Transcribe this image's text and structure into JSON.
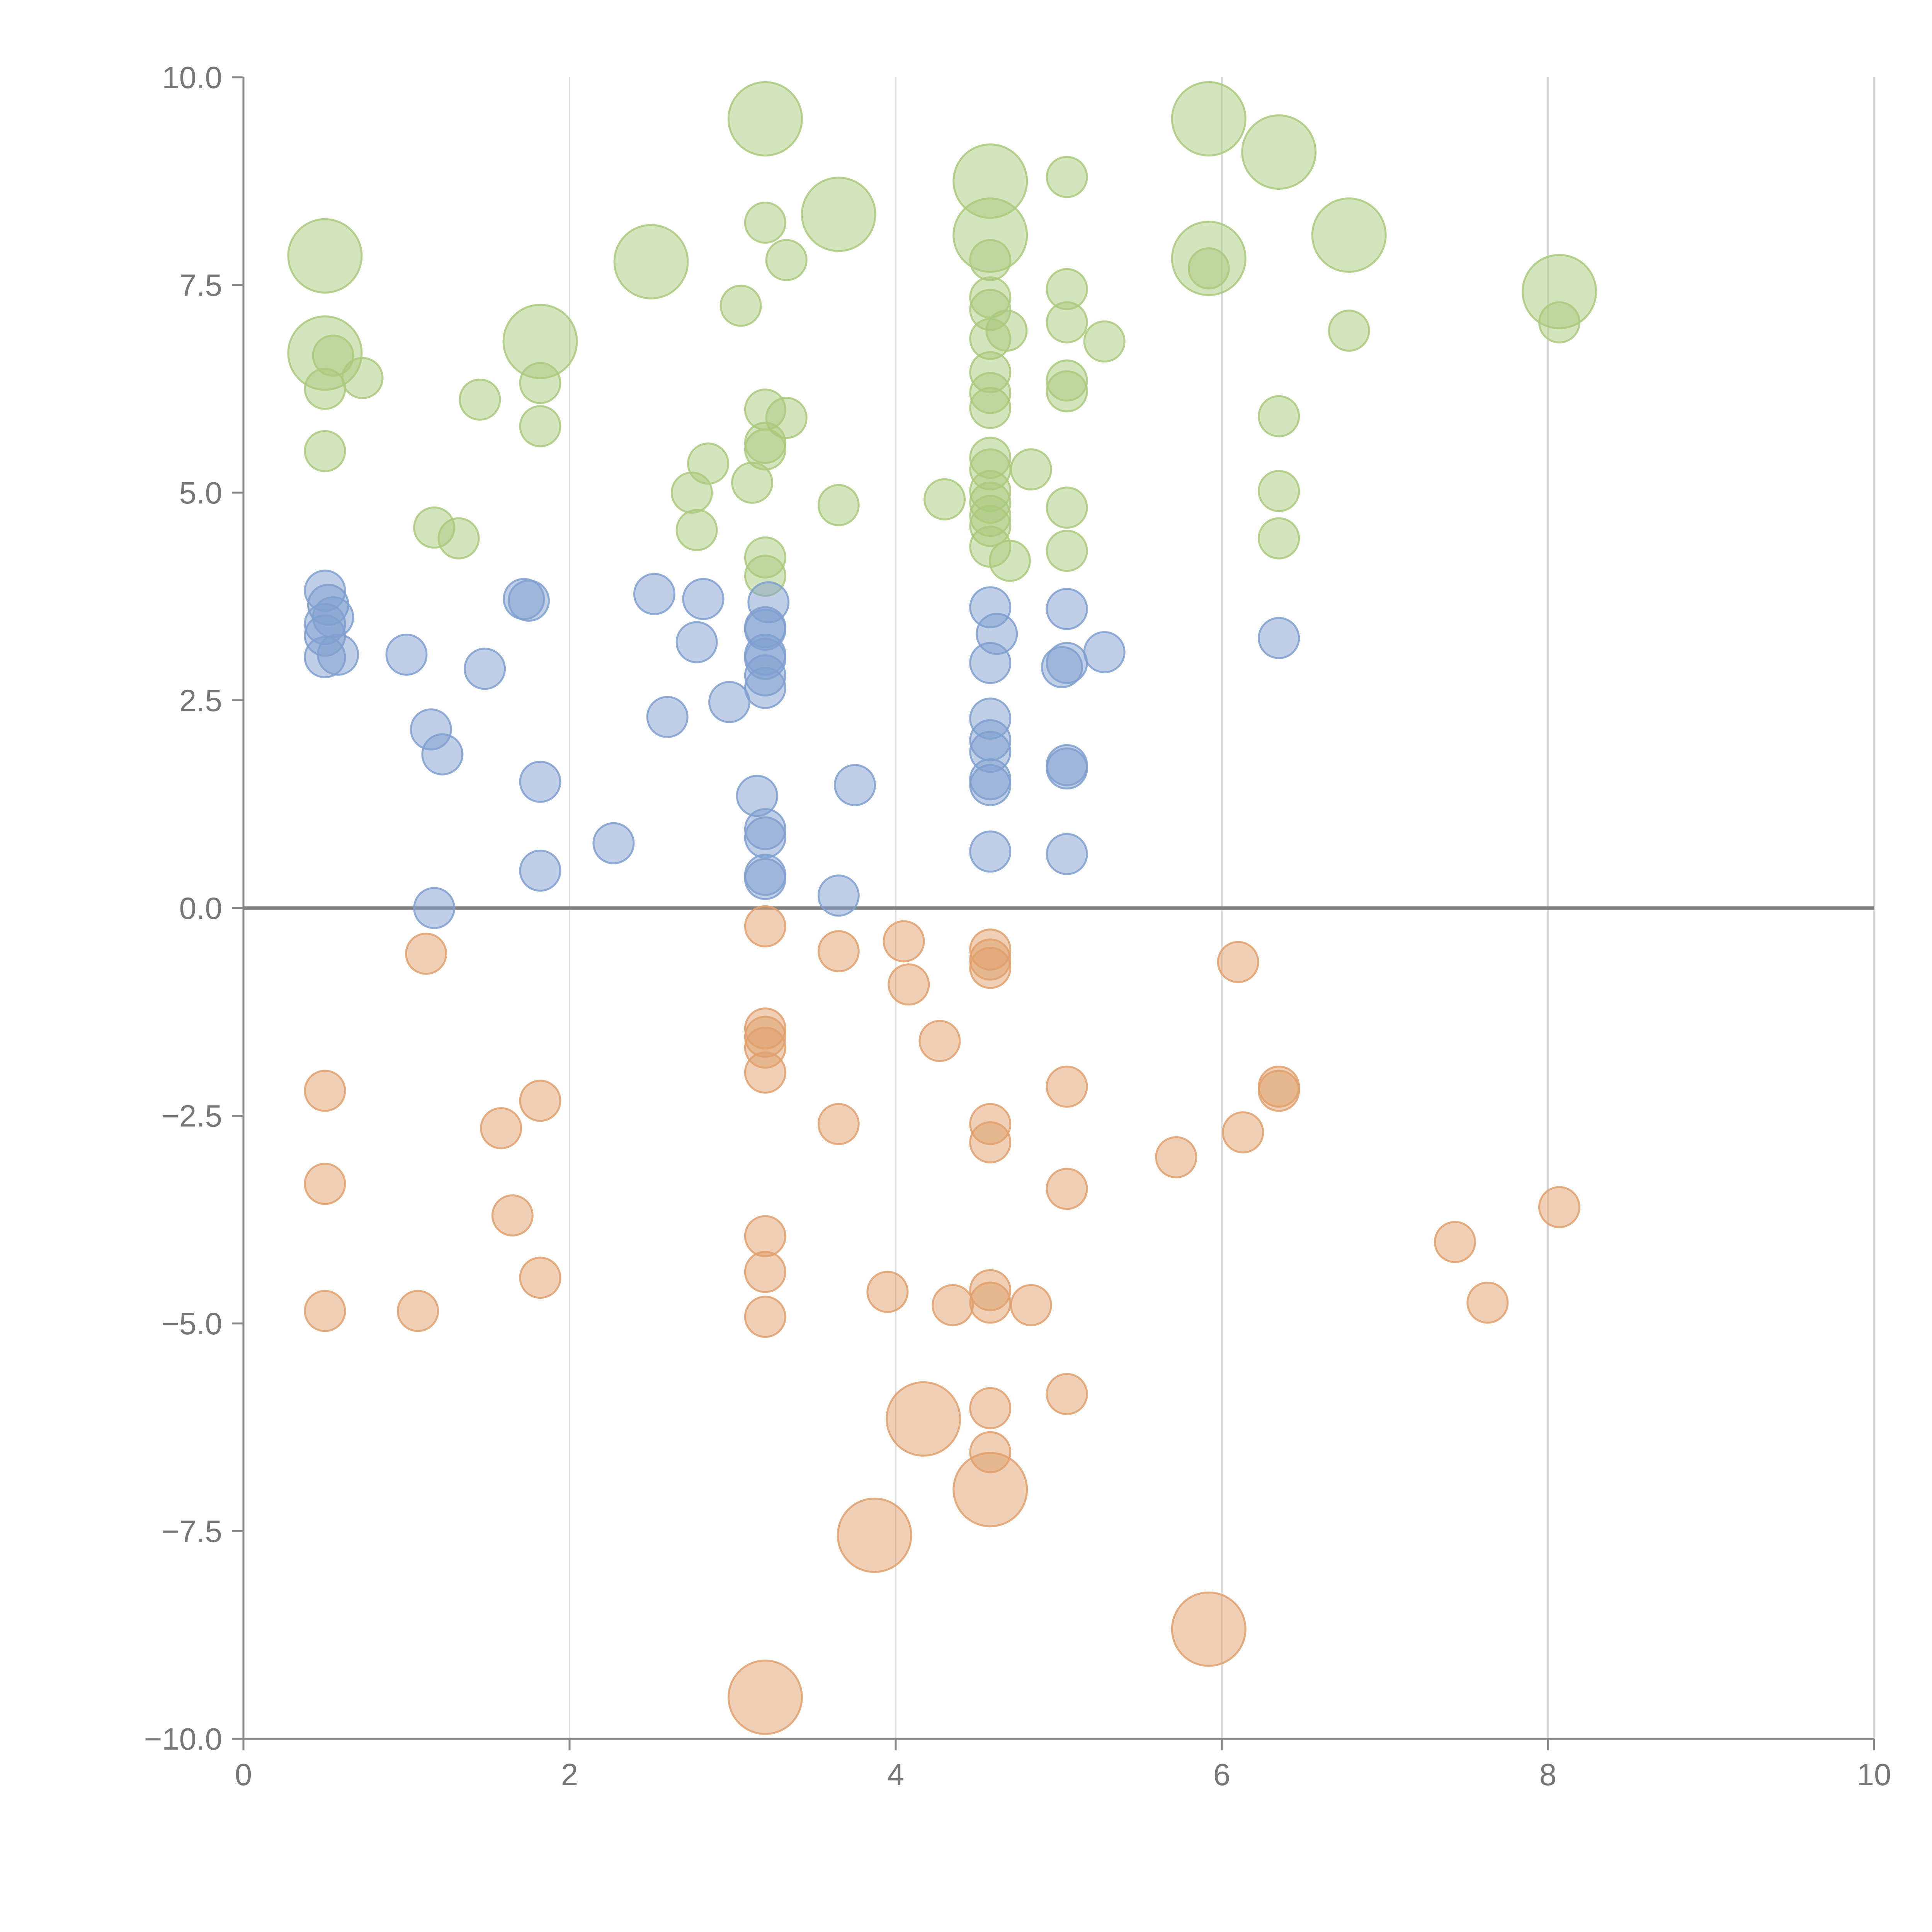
{
  "chart_data": {
    "type": "scatter",
    "title": "",
    "xlabel": "",
    "ylabel": "",
    "xlim": [
      0,
      10
    ],
    "ylim": [
      -10,
      10
    ],
    "grid": "vertical",
    "zero_line": true,
    "x_ticks": [
      "0",
      "2",
      "4",
      "6",
      "8",
      "10"
    ],
    "y_ticks": [
      "10.0",
      "7.5",
      "5.0",
      "2.5",
      "0.0",
      "−2.5",
      "−5.0",
      "−7.5",
      "−10.0"
    ],
    "x_tick_values": [
      0,
      2,
      4,
      6,
      8,
      10
    ],
    "y_tick_values": [
      10,
      7.5,
      5,
      2.5,
      0,
      -2.5,
      -5,
      -7.5,
      -10
    ],
    "colors": {
      "green": "#a9c97c",
      "blue": "#7f9fcf",
      "orange": "#e0a06c"
    },
    "series": [
      {
        "color": "green",
        "points": [
          [
            3.2,
            9.5,
            2
          ],
          [
            5.92,
            9.5,
            2
          ],
          [
            6.35,
            9.1,
            2
          ],
          [
            4.58,
            8.75,
            2
          ],
          [
            5.05,
            8.8,
            1
          ],
          [
            3.65,
            8.35,
            2
          ],
          [
            3.2,
            8.25,
            1
          ],
          [
            4.58,
            8.1,
            2
          ],
          [
            6.78,
            8.1,
            2
          ],
          [
            0.5,
            7.85,
            2
          ],
          [
            2.5,
            7.78,
            2
          ],
          [
            5.92,
            7.82,
            2
          ],
          [
            3.33,
            7.8,
            1
          ],
          [
            4.58,
            7.8,
            1
          ],
          [
            5.92,
            7.7,
            1
          ],
          [
            8.07,
            7.42,
            2
          ],
          [
            5.05,
            7.45,
            1
          ],
          [
            4.58,
            7.35,
            1
          ],
          [
            3.05,
            7.25,
            1
          ],
          [
            4.58,
            7.2,
            1
          ],
          [
            5.05,
            7.05,
            1
          ],
          [
            4.68,
            6.95,
            1
          ],
          [
            6.78,
            6.95,
            1
          ],
          [
            8.07,
            7.05,
            1
          ],
          [
            1.82,
            6.82,
            2
          ],
          [
            4.58,
            6.85,
            1
          ],
          [
            5.28,
            6.82,
            1
          ],
          [
            0.5,
            6.68,
            2
          ],
          [
            0.55,
            6.65,
            1
          ],
          [
            0.73,
            6.38,
            1
          ],
          [
            1.82,
            6.32,
            1
          ],
          [
            4.58,
            6.45,
            1
          ],
          [
            5.05,
            6.35,
            1
          ],
          [
            5.05,
            6.22,
            1
          ],
          [
            0.5,
            6.25,
            1
          ],
          [
            1.45,
            6.12,
            1
          ],
          [
            4.58,
            6.2,
            1
          ],
          [
            3.2,
            6.0,
            1
          ],
          [
            4.58,
            6.02,
            1
          ],
          [
            6.35,
            5.92,
            1
          ],
          [
            3.33,
            5.9,
            1
          ],
          [
            1.82,
            5.8,
            1
          ],
          [
            3.2,
            5.6,
            1
          ],
          [
            3.2,
            5.52,
            1
          ],
          [
            0.5,
            5.5,
            1
          ],
          [
            4.58,
            5.42,
            1
          ],
          [
            2.85,
            5.35,
            1
          ],
          [
            4.58,
            5.28,
            1
          ],
          [
            4.83,
            5.28,
            1
          ],
          [
            3.12,
            5.12,
            1
          ],
          [
            2.75,
            5.0,
            1
          ],
          [
            4.58,
            5.02,
            1
          ],
          [
            6.35,
            5.02,
            1
          ],
          [
            4.3,
            4.92,
            1
          ],
          [
            4.58,
            4.88,
            1
          ],
          [
            3.65,
            4.85,
            1
          ],
          [
            5.05,
            4.82,
            1
          ],
          [
            4.58,
            4.72,
            1
          ],
          [
            4.58,
            4.6,
            1
          ],
          [
            1.17,
            4.58,
            1
          ],
          [
            2.78,
            4.55,
            1
          ],
          [
            1.32,
            4.45,
            1
          ],
          [
            6.35,
            4.45,
            1
          ],
          [
            4.58,
            4.35,
            1
          ],
          [
            5.05,
            4.3,
            1
          ],
          [
            3.2,
            4.22,
            1
          ],
          [
            4.7,
            4.18,
            1
          ],
          [
            3.2,
            4.0,
            1
          ]
        ]
      },
      {
        "color": "blue",
        "points": [
          [
            0.5,
            3.82,
            1
          ],
          [
            0.52,
            3.65,
            1
          ],
          [
            1.72,
            3.72,
            1
          ],
          [
            1.75,
            3.7,
            1
          ],
          [
            2.52,
            3.78,
            1
          ],
          [
            2.82,
            3.72,
            1
          ],
          [
            3.22,
            3.68,
            1
          ],
          [
            4.58,
            3.62,
            1
          ],
          [
            5.05,
            3.6,
            1
          ],
          [
            0.55,
            3.5,
            1
          ],
          [
            0.5,
            3.42,
            1
          ],
          [
            3.2,
            3.38,
            1
          ],
          [
            3.2,
            3.35,
            1
          ],
          [
            0.5,
            3.28,
            1
          ],
          [
            4.62,
            3.3,
            1
          ],
          [
            6.35,
            3.25,
            1
          ],
          [
            2.78,
            3.2,
            1
          ],
          [
            1.0,
            3.05,
            1
          ],
          [
            0.58,
            3.05,
            1
          ],
          [
            0.5,
            3.02,
            1
          ],
          [
            3.2,
            3.05,
            1
          ],
          [
            3.2,
            3.0,
            1
          ],
          [
            5.28,
            3.08,
            1
          ],
          [
            4.58,
            2.95,
            1
          ],
          [
            5.05,
            2.95,
            1
          ],
          [
            5.02,
            2.9,
            1
          ],
          [
            1.48,
            2.88,
            1
          ],
          [
            3.2,
            2.8,
            1
          ],
          [
            3.2,
            2.65,
            1
          ],
          [
            2.98,
            2.48,
            1
          ],
          [
            2.6,
            2.3,
            1
          ],
          [
            4.58,
            2.28,
            1
          ],
          [
            1.15,
            2.15,
            1
          ],
          [
            4.58,
            2.02,
            1
          ],
          [
            4.58,
            1.88,
            1
          ],
          [
            1.22,
            1.85,
            1
          ],
          [
            5.05,
            1.72,
            1
          ],
          [
            5.05,
            1.68,
            1
          ],
          [
            1.82,
            1.52,
            1
          ],
          [
            4.58,
            1.55,
            1
          ],
          [
            4.58,
            1.48,
            1
          ],
          [
            3.75,
            1.48,
            1
          ],
          [
            3.15,
            1.35,
            1
          ],
          [
            3.2,
            0.95,
            1
          ],
          [
            3.2,
            0.85,
            1
          ],
          [
            2.27,
            0.78,
            1
          ],
          [
            4.58,
            0.68,
            1
          ],
          [
            5.05,
            0.65,
            1
          ],
          [
            1.82,
            0.45,
            1
          ],
          [
            3.2,
            0.4,
            1
          ],
          [
            3.2,
            0.35,
            1
          ],
          [
            3.65,
            0.15,
            1
          ],
          [
            1.17,
            0.0,
            1
          ]
        ]
      },
      {
        "color": "orange",
        "points": [
          [
            3.2,
            -0.22,
            1
          ],
          [
            4.05,
            -0.4,
            1
          ],
          [
            4.58,
            -0.5,
            1
          ],
          [
            1.12,
            -0.55,
            1
          ],
          [
            3.65,
            -0.52,
            1
          ],
          [
            4.58,
            -0.62,
            1
          ],
          [
            6.1,
            -0.65,
            1
          ],
          [
            4.58,
            -0.72,
            1
          ],
          [
            4.08,
            -0.92,
            1
          ],
          [
            3.2,
            -1.45,
            1
          ],
          [
            3.2,
            -1.55,
            1
          ],
          [
            3.2,
            -1.68,
            1
          ],
          [
            4.27,
            -1.6,
            1
          ],
          [
            3.2,
            -1.98,
            1
          ],
          [
            5.05,
            -2.15,
            1
          ],
          [
            6.35,
            -2.15,
            1
          ],
          [
            6.35,
            -2.2,
            1
          ],
          [
            0.5,
            -2.2,
            1
          ],
          [
            1.82,
            -2.32,
            1
          ],
          [
            1.58,
            -2.65,
            1
          ],
          [
            3.65,
            -2.6,
            1
          ],
          [
            4.58,
            -2.6,
            1
          ],
          [
            6.13,
            -2.7,
            1
          ],
          [
            4.58,
            -2.82,
            1
          ],
          [
            5.72,
            -3.0,
            1
          ],
          [
            0.5,
            -3.32,
            1
          ],
          [
            5.05,
            -3.38,
            1
          ],
          [
            8.07,
            -3.6,
            1
          ],
          [
            1.65,
            -3.7,
            1
          ],
          [
            3.2,
            -3.95,
            1
          ],
          [
            7.43,
            -4.02,
            1
          ],
          [
            3.2,
            -4.38,
            1
          ],
          [
            1.82,
            -4.45,
            1
          ],
          [
            4.58,
            -4.6,
            1
          ],
          [
            3.95,
            -4.62,
            1
          ],
          [
            4.58,
            -4.75,
            1
          ],
          [
            7.63,
            -4.75,
            1
          ],
          [
            4.35,
            -4.78,
            1
          ],
          [
            4.83,
            -4.78,
            1
          ],
          [
            0.5,
            -4.85,
            1
          ],
          [
            1.07,
            -4.85,
            1
          ],
          [
            3.2,
            -4.92,
            1
          ],
          [
            5.05,
            -5.85,
            1
          ],
          [
            4.58,
            -6.02,
            1
          ],
          [
            4.17,
            -6.15,
            2
          ],
          [
            4.58,
            -6.55,
            1
          ],
          [
            4.58,
            -7.0,
            2
          ],
          [
            3.87,
            -7.55,
            2
          ],
          [
            5.92,
            -8.68,
            2
          ],
          [
            3.2,
            -9.5,
            2
          ]
        ]
      }
    ]
  }
}
